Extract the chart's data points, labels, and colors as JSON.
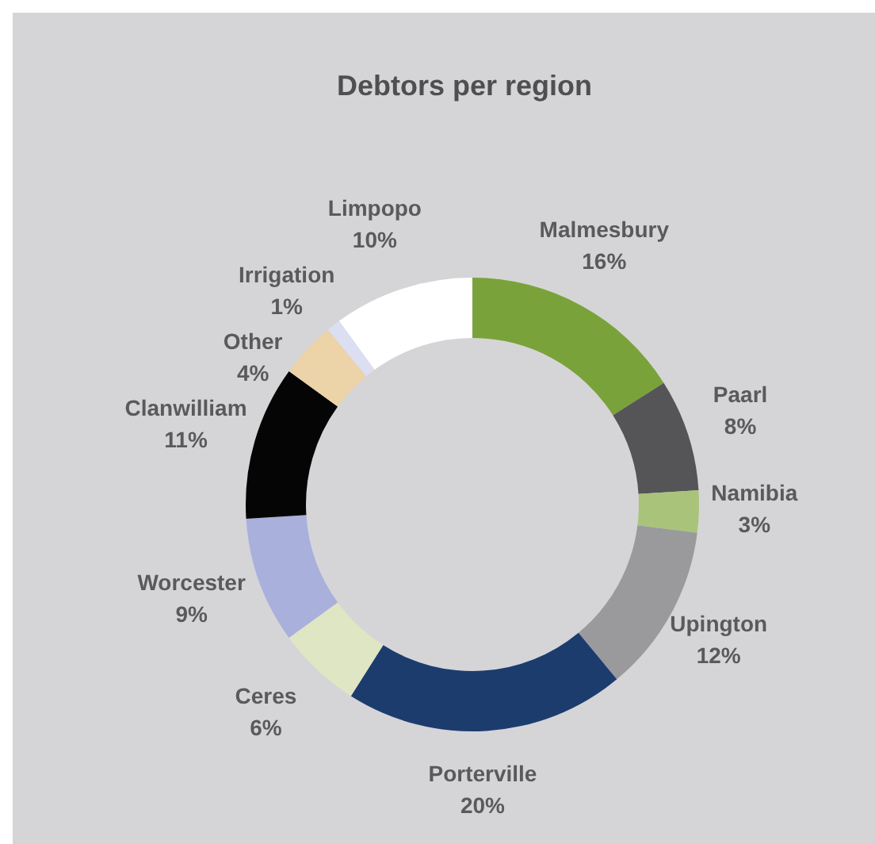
{
  "chart_data": {
    "type": "donut",
    "title": "Debtors per region",
    "categories": [
      "Malmesbury",
      "Paarl",
      "Namibia",
      "Upington",
      "Porterville",
      "Ceres",
      "Worcester",
      "Clanwilliam",
      "Other",
      "Irrigation",
      "Limpopo"
    ],
    "values": [
      16,
      8,
      3,
      12,
      20,
      6,
      9,
      11,
      4,
      1,
      10
    ],
    "value_labels": [
      "16%",
      "8%",
      "3%",
      "12%",
      "20%",
      "6%",
      "9%",
      "11%",
      "4%",
      "1%",
      "10%"
    ],
    "colors": [
      "#7aa23a",
      "#555557",
      "#a9c47a",
      "#9a9a9c",
      "#1d3c6e",
      "#dfe6c4",
      "#a9b0dc",
      "#050505",
      "#ecd3a8",
      "#dcdff2",
      "#ffffff"
    ],
    "legend": false
  }
}
